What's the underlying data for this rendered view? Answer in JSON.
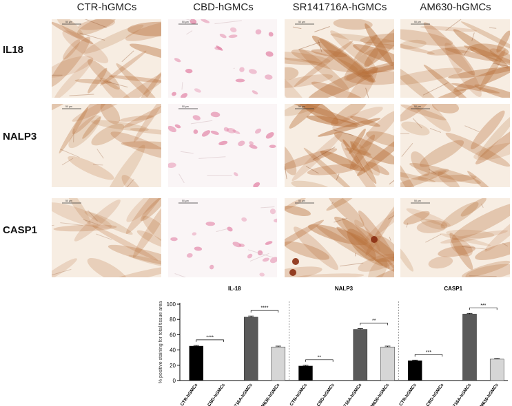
{
  "columns": [
    "CTR-hGMCs",
    "CBD-hGMCs",
    "SR141716A-hGMCs",
    "AM630-hGMCs"
  ],
  "rows": [
    "IL18",
    "NALP3",
    "CASP1"
  ],
  "scale_bar_label": "50 μm",
  "panels": [
    {
      "row": "IL18",
      "column": "CTR-hGMCs",
      "stain": "brown",
      "intensity": 0.55
    },
    {
      "row": "IL18",
      "column": "CBD-hGMCs",
      "stain": "pink",
      "intensity": 0.2
    },
    {
      "row": "IL18",
      "column": "SR141716A-hGMCs",
      "stain": "brown",
      "intensity": 0.75
    },
    {
      "row": "IL18",
      "column": "AM630-hGMCs",
      "stain": "brown",
      "intensity": 0.6
    },
    {
      "row": "NALP3",
      "column": "CTR-hGMCs",
      "stain": "brown",
      "intensity": 0.35
    },
    {
      "row": "NALP3",
      "column": "CBD-hGMCs",
      "stain": "pink",
      "intensity": 0.2
    },
    {
      "row": "NALP3",
      "column": "SR141716A-hGMCs",
      "stain": "brown",
      "intensity": 0.8
    },
    {
      "row": "NALP3",
      "column": "AM630-hGMCs",
      "stain": "brown",
      "intensity": 0.45
    },
    {
      "row": "CASP1",
      "column": "CTR-hGMCs",
      "stain": "brown",
      "intensity": 0.3
    },
    {
      "row": "CASP1",
      "column": "CBD-hGMCs",
      "stain": "pink",
      "intensity": 0.12
    },
    {
      "row": "CASP1",
      "column": "SR141716A-hGMCs",
      "stain": "brown",
      "intensity": 0.65
    },
    {
      "row": "CASP1",
      "column": "AM630-hGMCs",
      "stain": "brown",
      "intensity": 0.4
    }
  ],
  "colors": {
    "CTR-hGMCs": "#000000",
    "CBD-hGMCs": "#ffffff",
    "SR141716A-hGMCs": "#5a5a5a",
    "AM630-hGMCs": "#d6d6d6",
    "brown_stain": "#b8703a",
    "pink_stain": "#e07aa0"
  },
  "chart_data": {
    "type": "bar",
    "ylabel": "% positive staining for total tissue area",
    "ylim": [
      0,
      100
    ],
    "yticks": [
      0,
      20,
      40,
      60,
      80,
      100
    ],
    "grid": false,
    "groups": [
      {
        "title": "IL-18",
        "categories": [
          "CTR-hGMCs",
          "CBD-hGMCs",
          "SR141716A-hGMCs",
          "AM630-hGMCs"
        ],
        "values": [
          45,
          0,
          83,
          44
        ],
        "errors": [
          1,
          0,
          1.5,
          1
        ],
        "significance": [
          {
            "from": "CTR-hGMCs",
            "to": "CBD-hGMCs",
            "label": "****"
          },
          {
            "from": "SR141716A-hGMCs",
            "to": "AM630-hGMCs",
            "label": "****"
          }
        ]
      },
      {
        "title": "NALP3",
        "categories": [
          "CTR-hGMCs",
          "CBD-hGMCs",
          "SR141716A-hGMCs",
          "AM630-hGMCs"
        ],
        "values": [
          19,
          0,
          67,
          44
        ],
        "errors": [
          1,
          0,
          1,
          1
        ],
        "significance": [
          {
            "from": "CTR-hGMCs",
            "to": "CBD-hGMCs",
            "label": "**"
          },
          {
            "from": "SR141716A-hGMCs",
            "to": "AM630-hGMCs",
            "label": "**"
          }
        ]
      },
      {
        "title": "CASP1",
        "categories": [
          "CTR-hGMCs",
          "CBD-hGMCs",
          "SR141716A-hGMCs",
          "AM630-hGMCs"
        ],
        "values": [
          26,
          0,
          87,
          28
        ],
        "errors": [
          0.8,
          0,
          1,
          0.8
        ],
        "significance": [
          {
            "from": "CTR-hGMCs",
            "to": "CBD-hGMCs",
            "label": "***"
          },
          {
            "from": "SR141716A-hGMCs",
            "to": "AM630-hGMCs",
            "label": "***"
          }
        ]
      }
    ]
  }
}
